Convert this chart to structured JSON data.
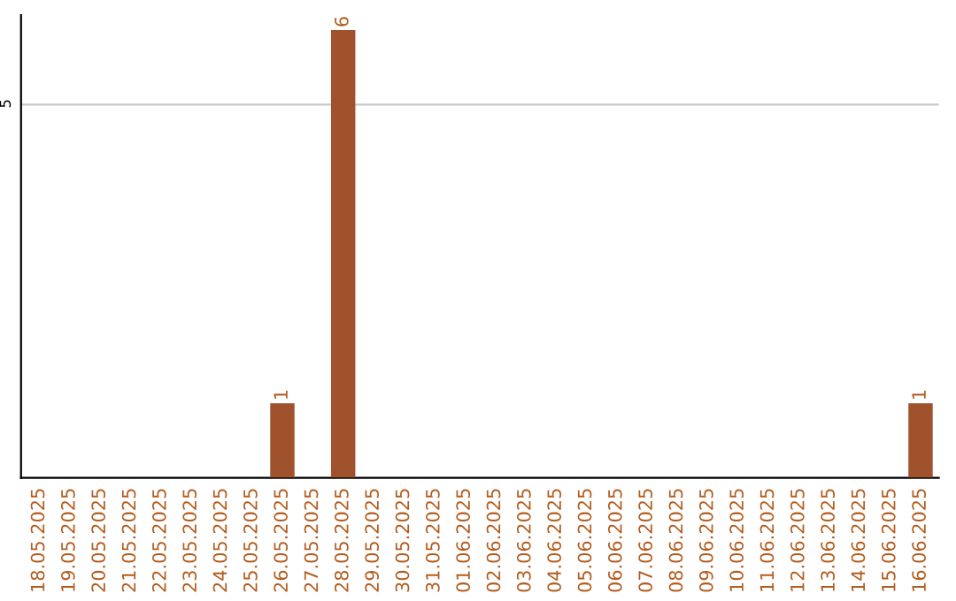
{
  "chart_data": {
    "type": "bar",
    "categories": [
      "18.05.2025",
      "19.05.2025",
      "20.05.2025",
      "21.05.2025",
      "22.05.2025",
      "23.05.2025",
      "24.05.2025",
      "25.05.2025",
      "26.05.2025",
      "27.05.2025",
      "28.05.2025",
      "29.05.2025",
      "30.05.2025",
      "31.05.2025",
      "01.06.2025",
      "02.06.2025",
      "03.06.2025",
      "04.06.2025",
      "05.06.2025",
      "06.06.2025",
      "07.06.2025",
      "08.06.2025",
      "09.06.2025",
      "10.06.2025",
      "11.06.2025",
      "12.06.2025",
      "13.06.2025",
      "14.06.2025",
      "15.06.2025",
      "16.06.2025"
    ],
    "values": [
      0,
      0,
      0,
      0,
      0,
      0,
      0,
      0,
      1,
      0,
      6,
      0,
      0,
      0,
      0,
      0,
      0,
      0,
      0,
      0,
      0,
      0,
      0,
      0,
      0,
      0,
      0,
      0,
      0,
      1
    ],
    "value_labels": [
      null,
      null,
      null,
      null,
      null,
      null,
      null,
      null,
      "1",
      null,
      "6",
      null,
      null,
      null,
      null,
      null,
      null,
      null,
      null,
      null,
      null,
      null,
      null,
      null,
      null,
      null,
      null,
      null,
      null,
      "1"
    ],
    "color": "#a0522d",
    "ylim": [
      0,
      6.2
    ],
    "yticks": [
      5
    ],
    "grid": "y"
  }
}
